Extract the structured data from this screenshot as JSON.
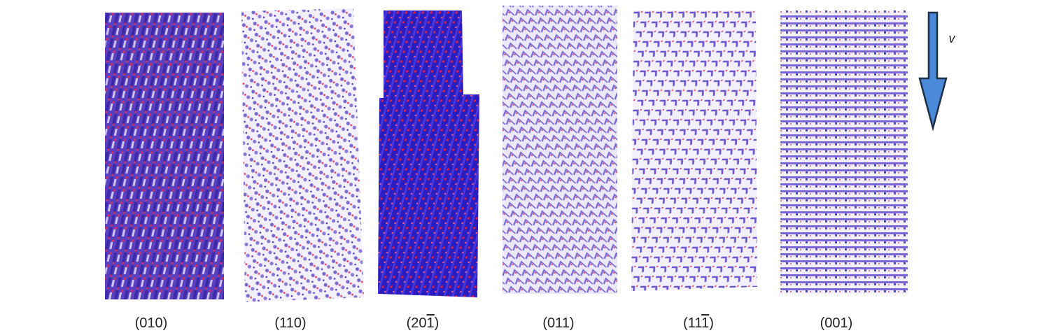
{
  "labels": [
    {
      "parts": [
        {
          "text": "(010)",
          "overline": false
        }
      ]
    },
    {
      "parts": [
        {
          "text": "(110)",
          "overline": false
        }
      ]
    },
    {
      "parts": [
        {
          "text": "(20",
          "overline": false
        },
        {
          "text": "1",
          "overline": true
        },
        {
          "text": ")",
          "overline": false
        }
      ]
    },
    {
      "parts": [
        {
          "text": "(011)",
          "overline": false
        }
      ]
    },
    {
      "parts": [
        {
          "text": "(11",
          "overline": false
        },
        {
          "text": "1",
          "overline": true
        },
        {
          "text": ")",
          "overline": false
        }
      ]
    },
    {
      "parts": [
        {
          "text": "(001)",
          "overline": false
        }
      ]
    }
  ],
  "arrow_label": "v"
}
